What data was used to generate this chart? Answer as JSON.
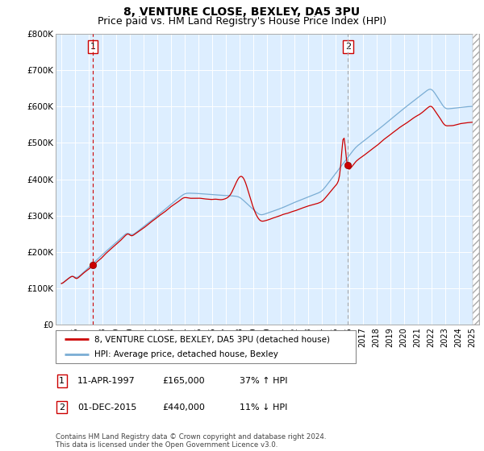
{
  "title": "8, VENTURE CLOSE, BEXLEY, DA5 3PU",
  "subtitle": "Price paid vs. HM Land Registry's House Price Index (HPI)",
  "ylim": [
    0,
    800000
  ],
  "yticks": [
    0,
    100000,
    200000,
    300000,
    400000,
    500000,
    600000,
    700000,
    800000
  ],
  "ytick_labels": [
    "£0",
    "£100K",
    "£200K",
    "£300K",
    "£400K",
    "£500K",
    "£600K",
    "£700K",
    "£800K"
  ],
  "red_line_color": "#cc0000",
  "blue_line_color": "#7aadd4",
  "vline1_color": "#cc0000",
  "vline2_color": "#aaaaaa",
  "dot_color": "#990000",
  "transaction1_year": 1997.29,
  "transaction1_value": 165000,
  "transaction2_year": 2015.92,
  "transaction2_value": 440000,
  "legend_label_red": "8, VENTURE CLOSE, BEXLEY, DA5 3PU (detached house)",
  "legend_label_blue": "HPI: Average price, detached house, Bexley",
  "annotation1_date": "11-APR-1997",
  "annotation1_price": "£165,000",
  "annotation1_hpi": "37% ↑ HPI",
  "annotation2_date": "01-DEC-2015",
  "annotation2_price": "£440,000",
  "annotation2_hpi": "11% ↓ HPI",
  "footer": "Contains HM Land Registry data © Crown copyright and database right 2024.\nThis data is licensed under the Open Government Licence v3.0.",
  "background_color": "#ffffff",
  "plot_bg_color": "#ddeeff",
  "grid_color": "#ffffff",
  "title_fontsize": 10,
  "subtitle_fontsize": 9,
  "xlim_left": 1994.58,
  "xlim_right": 2025.5
}
